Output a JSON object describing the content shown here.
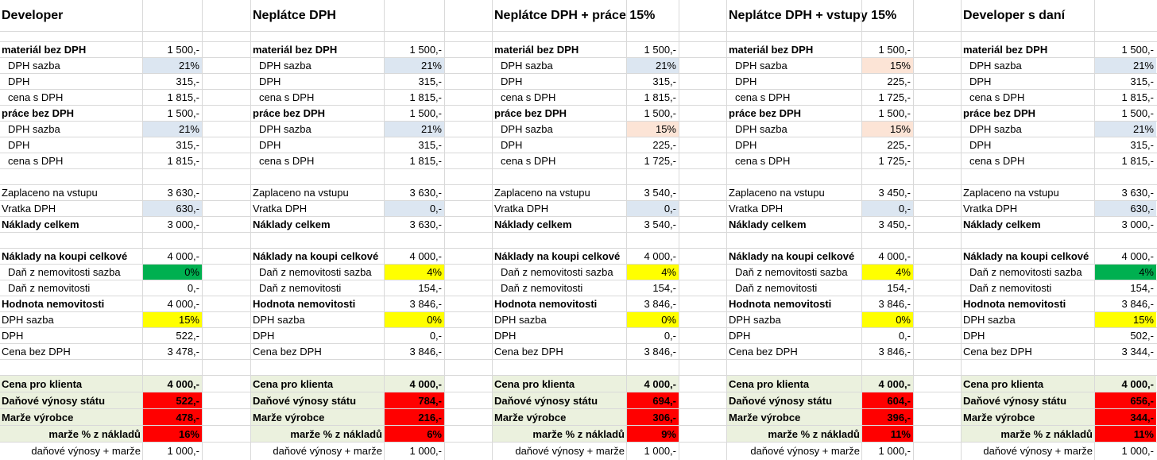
{
  "colors": {
    "grid": "#d9d9d9",
    "light_blue": "#dce6f1",
    "peach": "#fce4d6",
    "green": "#00b050",
    "yellow": "#ffff00",
    "red": "#ff0000",
    "summary_bg": "#ebf1de"
  },
  "scenarios": [
    {
      "title": "Developer",
      "rows": [
        {
          "label": "materiál bez DPH",
          "value": "1 500,-",
          "bold": true
        },
        {
          "label": "DPH sazba",
          "value": "21%",
          "indent": true,
          "fill": "light_blue"
        },
        {
          "label": "DPH",
          "value": "315,-",
          "indent": true
        },
        {
          "label": "cena s DPH",
          "value": "1 815,-",
          "indent": true
        },
        {
          "label": "práce bez DPH",
          "value": "1 500,-",
          "bold": true
        },
        {
          "label": "DPH sazba",
          "value": "21%",
          "indent": true,
          "fill": "light_blue"
        },
        {
          "label": "DPH",
          "value": "315,-",
          "indent": true
        },
        {
          "label": "cena s DPH",
          "value": "1 815,-",
          "indent": true
        },
        null,
        {
          "label": "Zaplaceno na vstupu",
          "value": "3 630,-"
        },
        {
          "label": "Vratka DPH",
          "value": "630,-",
          "fill": "light_blue"
        },
        {
          "label": "Náklady celkem",
          "value": "3 000,-",
          "bold": true
        },
        null,
        {
          "label": "Náklady na koupi celkové",
          "value": "4 000,-",
          "bold": true
        },
        {
          "label": "Daň z nemovitosti sazba",
          "value": "0%",
          "indent": true,
          "fill": "green"
        },
        {
          "label": "Daň z nemovitosti",
          "value": "0,-",
          "indent": true
        },
        {
          "label": "Hodnota nemovitosti",
          "value": "4 000,-",
          "bold": true
        },
        {
          "label": "DPH sazba",
          "value": "15%",
          "fill": "yellow"
        },
        {
          "label": "DPH",
          "value": "522,-"
        },
        {
          "label": "Cena bez DPH",
          "value": "3 478,-"
        }
      ],
      "summary": [
        {
          "label": "Cena pro klienta",
          "value": "4 000,-"
        },
        {
          "label": "Daňové výnosy státu",
          "value": "522,-",
          "fill": "red"
        },
        {
          "label": "Marže výrobce",
          "value": "478,-",
          "fill": "red"
        },
        {
          "label": "marže % z nákladů",
          "value": "16%",
          "fill": "red",
          "right": true
        }
      ],
      "footer": {
        "label": "daňové výnosy + marže",
        "value": "1 000,-"
      }
    },
    {
      "title": "Neplátce DPH",
      "rows": [
        {
          "label": "materiál bez DPH",
          "value": "1 500,-",
          "bold": true
        },
        {
          "label": "DPH sazba",
          "value": "21%",
          "indent": true,
          "fill": "light_blue"
        },
        {
          "label": "DPH",
          "value": "315,-",
          "indent": true
        },
        {
          "label": "cena s DPH",
          "value": "1 815,-",
          "indent": true
        },
        {
          "label": "práce bez DPH",
          "value": "1 500,-",
          "bold": true
        },
        {
          "label": "DPH sazba",
          "value": "21%",
          "indent": true,
          "fill": "light_blue"
        },
        {
          "label": "DPH",
          "value": "315,-",
          "indent": true
        },
        {
          "label": "cena s DPH",
          "value": "1 815,-",
          "indent": true
        },
        null,
        {
          "label": "Zaplaceno na vstupu",
          "value": "3 630,-"
        },
        {
          "label": "Vratka DPH",
          "value": "0,-",
          "fill": "light_blue"
        },
        {
          "label": "Náklady celkem",
          "value": "3 630,-",
          "bold": true
        },
        null,
        {
          "label": "Náklady na koupi celkové",
          "value": "4 000,-",
          "bold": true
        },
        {
          "label": "Daň z nemovitosti sazba",
          "value": "4%",
          "indent": true,
          "fill": "yellow"
        },
        {
          "label": "Daň z nemovitosti",
          "value": "154,-",
          "indent": true
        },
        {
          "label": "Hodnota nemovitosti",
          "value": "3 846,-",
          "bold": true
        },
        {
          "label": "DPH sazba",
          "value": "0%",
          "fill": "yellow"
        },
        {
          "label": "DPH",
          "value": "0,-"
        },
        {
          "label": "Cena bez DPH",
          "value": "3 846,-"
        }
      ],
      "summary": [
        {
          "label": "Cena pro klienta",
          "value": "4 000,-"
        },
        {
          "label": "Daňové výnosy státu",
          "value": "784,-",
          "fill": "red"
        },
        {
          "label": "Marže výrobce",
          "value": "216,-",
          "fill": "red"
        },
        {
          "label": "marže % z nákladů",
          "value": "6%",
          "fill": "red",
          "right": true
        }
      ],
      "footer": {
        "label": "daňové výnosy + marže",
        "value": "1 000,-"
      }
    },
    {
      "title": "Neplátce DPH + práce 15%",
      "rows": [
        {
          "label": "materiál bez DPH",
          "value": "1 500,-",
          "bold": true
        },
        {
          "label": "DPH sazba",
          "value": "21%",
          "indent": true,
          "fill": "light_blue"
        },
        {
          "label": "DPH",
          "value": "315,-",
          "indent": true
        },
        {
          "label": "cena s DPH",
          "value": "1 815,-",
          "indent": true
        },
        {
          "label": "práce bez DPH",
          "value": "1 500,-",
          "bold": true
        },
        {
          "label": "DPH sazba",
          "value": "15%",
          "indent": true,
          "fill": "peach"
        },
        {
          "label": "DPH",
          "value": "225,-",
          "indent": true
        },
        {
          "label": "cena s DPH",
          "value": "1 725,-",
          "indent": true
        },
        null,
        {
          "label": "Zaplaceno na vstupu",
          "value": "3 540,-"
        },
        {
          "label": "Vratka DPH",
          "value": "0,-",
          "fill": "light_blue"
        },
        {
          "label": "Náklady celkem",
          "value": "3 540,-",
          "bold": true
        },
        null,
        {
          "label": "Náklady na koupi celkové",
          "value": "4 000,-",
          "bold": true
        },
        {
          "label": "Daň z nemovitosti sazba",
          "value": "4%",
          "indent": true,
          "fill": "yellow"
        },
        {
          "label": "Daň z nemovitosti",
          "value": "154,-",
          "indent": true
        },
        {
          "label": "Hodnota nemovitosti",
          "value": "3 846,-",
          "bold": true
        },
        {
          "label": "DPH sazba",
          "value": "0%",
          "fill": "yellow"
        },
        {
          "label": "DPH",
          "value": "0,-"
        },
        {
          "label": "Cena bez DPH",
          "value": "3 846,-"
        }
      ],
      "summary": [
        {
          "label": "Cena pro klienta",
          "value": "4 000,-"
        },
        {
          "label": "Daňové výnosy státu",
          "value": "694,-",
          "fill": "red"
        },
        {
          "label": "Marže výrobce",
          "value": "306,-",
          "fill": "red"
        },
        {
          "label": "marže % z nákladů",
          "value": "9%",
          "fill": "red",
          "right": true
        }
      ],
      "footer": {
        "label": "daňové výnosy + marže",
        "value": "1 000,-"
      }
    },
    {
      "title": "Neplátce DPH + vstupy 15%",
      "rows": [
        {
          "label": "materiál bez DPH",
          "value": "1 500,-",
          "bold": true
        },
        {
          "label": "DPH sazba",
          "value": "15%",
          "indent": true,
          "fill": "peach"
        },
        {
          "label": "DPH",
          "value": "225,-",
          "indent": true
        },
        {
          "label": "cena s DPH",
          "value": "1 725,-",
          "indent": true
        },
        {
          "label": "práce bez DPH",
          "value": "1 500,-",
          "bold": true
        },
        {
          "label": "DPH sazba",
          "value": "15%",
          "indent": true,
          "fill": "peach"
        },
        {
          "label": "DPH",
          "value": "225,-",
          "indent": true
        },
        {
          "label": "cena s DPH",
          "value": "1 725,-",
          "indent": true
        },
        null,
        {
          "label": "Zaplaceno na vstupu",
          "value": "3 450,-"
        },
        {
          "label": "Vratka DPH",
          "value": "0,-",
          "fill": "light_blue"
        },
        {
          "label": "Náklady celkem",
          "value": "3 450,-",
          "bold": true
        },
        null,
        {
          "label": "Náklady na koupi celkové",
          "value": "4 000,-",
          "bold": true
        },
        {
          "label": "Daň z nemovitosti sazba",
          "value": "4%",
          "indent": true,
          "fill": "yellow"
        },
        {
          "label": "Daň z nemovitosti",
          "value": "154,-",
          "indent": true
        },
        {
          "label": "Hodnota nemovitosti",
          "value": "3 846,-",
          "bold": true
        },
        {
          "label": "DPH sazba",
          "value": "0%",
          "fill": "yellow"
        },
        {
          "label": "DPH",
          "value": "0,-"
        },
        {
          "label": "Cena bez DPH",
          "value": "3 846,-"
        }
      ],
      "summary": [
        {
          "label": "Cena pro klienta",
          "value": "4 000,-"
        },
        {
          "label": "Daňové výnosy státu",
          "value": "604,-",
          "fill": "red"
        },
        {
          "label": "Marže výrobce",
          "value": "396,-",
          "fill": "red"
        },
        {
          "label": "marže % z nákladů",
          "value": "11%",
          "fill": "red",
          "right": true
        }
      ],
      "footer": {
        "label": "daňové výnosy + marže",
        "value": "1 000,-"
      }
    },
    {
      "title": "Developer s daní",
      "rows": [
        {
          "label": "materiál bez DPH",
          "value": "1 500,-",
          "bold": true
        },
        {
          "label": "DPH sazba",
          "value": "21%",
          "indent": true,
          "fill": "light_blue"
        },
        {
          "label": "DPH",
          "value": "315,-",
          "indent": true
        },
        {
          "label": "cena s DPH",
          "value": "1 815,-",
          "indent": true
        },
        {
          "label": "práce bez DPH",
          "value": "1 500,-",
          "bold": true
        },
        {
          "label": "DPH sazba",
          "value": "21%",
          "indent": true,
          "fill": "light_blue"
        },
        {
          "label": "DPH",
          "value": "315,-",
          "indent": true
        },
        {
          "label": "cena s DPH",
          "value": "1 815,-",
          "indent": true
        },
        null,
        {
          "label": "Zaplaceno na vstupu",
          "value": "3 630,-"
        },
        {
          "label": "Vratka DPH",
          "value": "630,-",
          "fill": "light_blue"
        },
        {
          "label": "Náklady celkem",
          "value": "3 000,-",
          "bold": true
        },
        null,
        {
          "label": "Náklady na koupi celkové",
          "value": "4 000,-",
          "bold": true
        },
        {
          "label": "Daň z nemovitosti sazba",
          "value": "4%",
          "indent": true,
          "fill": "green"
        },
        {
          "label": "Daň z nemovitosti",
          "value": "154,-",
          "indent": true
        },
        {
          "label": "Hodnota nemovitosti",
          "value": "3 846,-",
          "bold": true
        },
        {
          "label": "DPH sazba",
          "value": "15%",
          "fill": "yellow"
        },
        {
          "label": "DPH",
          "value": "502,-"
        },
        {
          "label": "Cena bez DPH",
          "value": "3 344,-"
        }
      ],
      "summary": [
        {
          "label": "Cena pro klienta",
          "value": "4 000,-"
        },
        {
          "label": "Daňové výnosy státu",
          "value": "656,-",
          "fill": "red"
        },
        {
          "label": "Marže výrobce",
          "value": "344,-",
          "fill": "red"
        },
        {
          "label": "marže % z nákladů",
          "value": "11%",
          "fill": "red",
          "right": true
        }
      ],
      "footer": {
        "label": "daňové výnosy + marže",
        "value": "1 000,-"
      }
    }
  ]
}
